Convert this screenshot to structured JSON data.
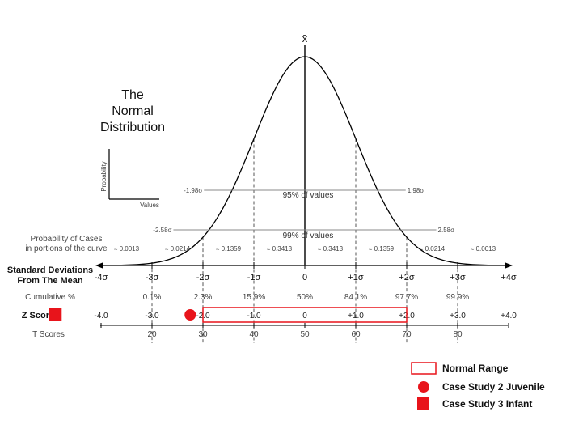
{
  "title": [
    "The",
    "Normal",
    "Distribution"
  ],
  "mean_symbol": "x̄",
  "inset": {
    "y_label": "Probability",
    "x_label": "Values"
  },
  "intervals": {
    "pct95": {
      "label": "95% of values",
      "left": "-1.98σ",
      "right": "1.98σ",
      "z": 1.98
    },
    "pct99": {
      "label": "99% of values",
      "left": "-2.58σ",
      "right": "2.58σ",
      "z": 2.58
    }
  },
  "rows": {
    "probability_label_1": "Probability of Cases",
    "probability_label_2": "in portions of the curve",
    "sd_label_1": "Standard Deviations",
    "sd_label_2": "From The Mean",
    "cumulative_label": "Cumulative %",
    "z_label": "Z Scores",
    "t_label": "T Scores"
  },
  "probabilities": [
    {
      "z": -3.5,
      "label": "≈ 0.0013"
    },
    {
      "z": -2.5,
      "label": "≈ 0.0214"
    },
    {
      "z": -1.5,
      "label": "≈ 0.1359"
    },
    {
      "z": -0.5,
      "label": "≈ 0.3413"
    },
    {
      "z": 0.5,
      "label": "≈ 0.3413"
    },
    {
      "z": 1.5,
      "label": "≈ 0.1359"
    },
    {
      "z": 2.5,
      "label": "≈ 0.0214"
    },
    {
      "z": 3.5,
      "label": "≈ 0.0013"
    }
  ],
  "sd_ticks": [
    {
      "z": -4,
      "label": "-4σ"
    },
    {
      "z": -3,
      "label": "-3σ"
    },
    {
      "z": -2,
      "label": "-2σ"
    },
    {
      "z": -1,
      "label": "-1σ"
    },
    {
      "z": 0,
      "label": "0"
    },
    {
      "z": 1,
      "label": "+1σ"
    },
    {
      "z": 2,
      "label": "+2σ"
    },
    {
      "z": 3,
      "label": "+3σ"
    },
    {
      "z": 4,
      "label": "+4σ"
    }
  ],
  "cumulative": [
    {
      "z": -3,
      "label": "0.1%"
    },
    {
      "z": -2,
      "label": "2.3%"
    },
    {
      "z": -1,
      "label": "15.9%"
    },
    {
      "z": 0,
      "label": "50%"
    },
    {
      "z": 1,
      "label": "84.1%"
    },
    {
      "z": 2,
      "label": "97.7%"
    },
    {
      "z": 3,
      "label": "99.9%"
    }
  ],
  "z_scores": [
    {
      "z": -4,
      "label": "-4.0"
    },
    {
      "z": -3,
      "label": "-3.0"
    },
    {
      "z": -2,
      "label": "-2.0"
    },
    {
      "z": -1,
      "label": "-1.0"
    },
    {
      "z": 0,
      "label": "0"
    },
    {
      "z": 1,
      "label": "+1.0"
    },
    {
      "z": 2,
      "label": "+2.0"
    },
    {
      "z": 3,
      "label": "+3.0"
    },
    {
      "z": 4,
      "label": "+4.0"
    }
  ],
  "t_scores": [
    {
      "z": -3,
      "label": "20"
    },
    {
      "z": -2,
      "label": "30"
    },
    {
      "z": -1,
      "label": "40"
    },
    {
      "z": 0,
      "label": "50"
    },
    {
      "z": 1,
      "label": "60"
    },
    {
      "z": 2,
      "label": "70"
    },
    {
      "z": 3,
      "label": "80"
    }
  ],
  "markers": {
    "normal_range": {
      "z_from": -2,
      "z_to": 2
    },
    "juvenile": {
      "z": -2.25
    },
    "infant": {
      "z": -4.9
    }
  },
  "legend": {
    "normal_range": "Normal Range",
    "juvenile": "Case Study 2 Juvenile",
    "infant": "Case Study 3 Infant"
  },
  "colors": {
    "accent": "#e8141b",
    "line": "#000000",
    "guide": "#888888"
  }
}
